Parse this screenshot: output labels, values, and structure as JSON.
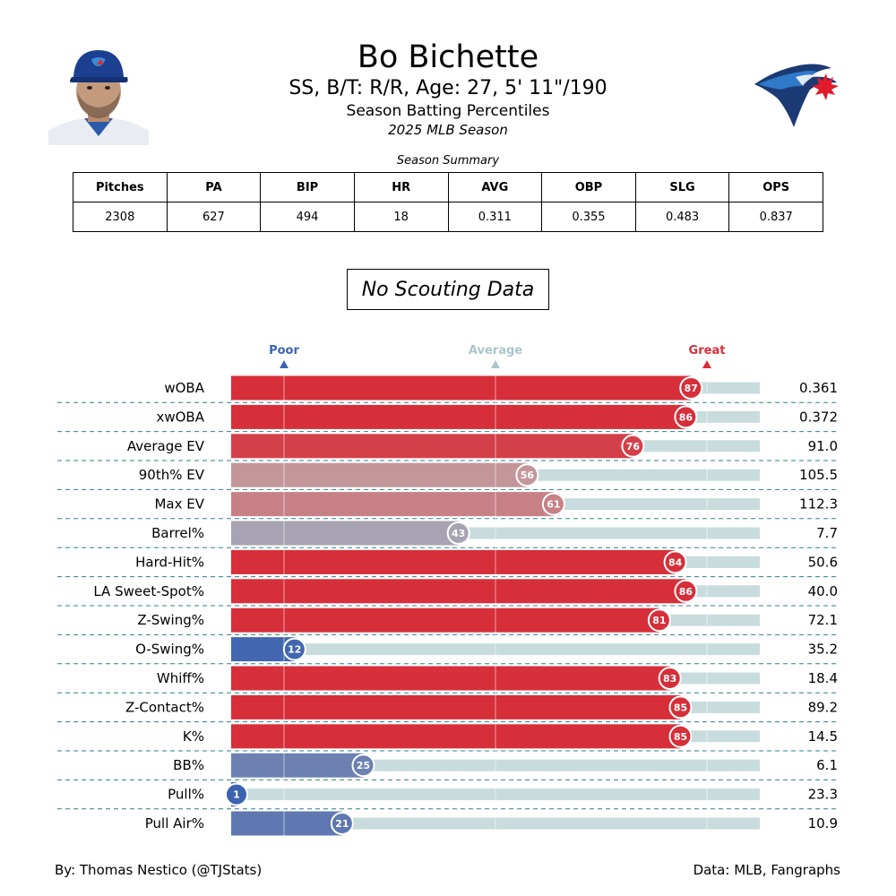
{
  "header": {
    "player_name": "Bo Bichette",
    "player_info": "SS, B/T: R/R, Age: 27, 5' 11\"/190",
    "subtitle": "Season Batting Percentiles",
    "season": "2025 MLB Season"
  },
  "summary": {
    "title": "Season Summary",
    "columns": [
      "Pitches",
      "PA",
      "BIP",
      "HR",
      "AVG",
      "OBP",
      "SLG",
      "OPS"
    ],
    "values": [
      "2308",
      "627",
      "494",
      "18",
      "0.311",
      "0.355",
      "0.483",
      "0.837"
    ]
  },
  "scouting": {
    "text": "No Scouting Data"
  },
  "colors": {
    "great": "#d62f3a",
    "average": "#a9c6cb",
    "poor": "#3b63b0",
    "track": "#c8dcdd",
    "separator": "#2f7f8c"
  },
  "chart_data": {
    "type": "bar",
    "orientation": "horizontal",
    "xlim": [
      0,
      100
    ],
    "markers": [
      {
        "label": "Poor",
        "percentile": 10,
        "color": "#3b63b0"
      },
      {
        "label": "Average",
        "percentile": 50,
        "color": "#a9c6cb"
      },
      {
        "label": "Great",
        "percentile": 90,
        "color": "#d62f3a"
      }
    ],
    "categories": [
      "wOBA",
      "xwOBA",
      "Average EV",
      "90th% EV",
      "Max EV",
      "Barrel%",
      "Hard-Hit%",
      "LA Sweet-Spot%",
      "Z-Swing%",
      "O-Swing%",
      "Whiff%",
      "Z-Contact%",
      "K%",
      "BB%",
      "Pull%",
      "Pull Air%"
    ],
    "percentiles": [
      87,
      86,
      76,
      56,
      61,
      43,
      84,
      86,
      81,
      12,
      83,
      85,
      85,
      25,
      1,
      21
    ],
    "stat_values": [
      "0.361",
      "0.372",
      "91.0",
      "105.5",
      "112.3",
      "7.7",
      "50.6",
      "40.0",
      "72.1",
      "35.2",
      "18.4",
      "89.2",
      "14.5",
      "6.1",
      "23.3",
      "10.9"
    ]
  },
  "footer": {
    "left": "By: Thomas Nestico (@TJStats)",
    "right": "Data: MLB, Fangraphs"
  }
}
